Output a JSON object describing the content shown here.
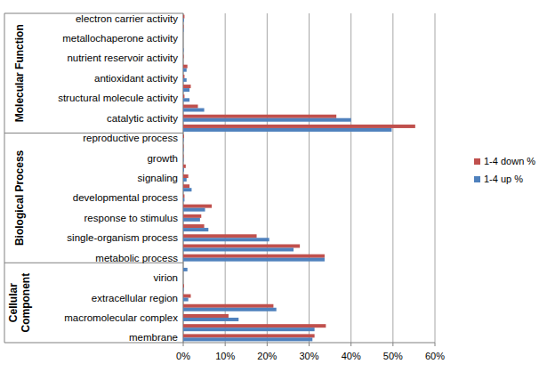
{
  "chart_data": {
    "type": "bar",
    "orientation": "horizontal",
    "grid": true,
    "legend": "right",
    "categories": [
      "electron carrier activity",
      null,
      "metallochaperone activity",
      null,
      "nutrient reservoir activity",
      null,
      "antioxidant activity",
      null,
      "structural molecule activity",
      null,
      "catalytic activity",
      null,
      "reproductive process",
      null,
      "growth",
      null,
      "signaling",
      null,
      "developmental process",
      null,
      "response to stimulus",
      null,
      "single-organism process",
      null,
      "metabolic process",
      null,
      "virion",
      null,
      "extracellular region",
      null,
      "macromolecular complex",
      null,
      "membrane"
    ],
    "groups": [
      {
        "name": "Molecular Function",
        "count": 12
      },
      {
        "name": "Biological Process",
        "count": 13
      },
      {
        "name": "Cellular Component",
        "count": 8
      }
    ],
    "series": [
      {
        "name": "1-4 down %",
        "color": "#c0504d",
        "values": [
          0.3,
          0.1,
          0,
          0,
          0.1,
          1.0,
          0.3,
          1.8,
          0.3,
          3.5,
          36.5,
          55.3,
          0.2,
          0.1,
          0.1,
          0.6,
          1.2,
          1.5,
          0.3,
          6.8,
          4.3,
          5.0,
          17.5,
          27.8,
          33.7,
          0,
          0,
          0.2,
          1.8,
          21.5,
          10.8,
          34.0,
          31.3
        ]
      },
      {
        "name": "1-4 up %",
        "color": "#4f81bd",
        "values": [
          0.2,
          0.1,
          0,
          0.1,
          0,
          0.8,
          0.8,
          1.5,
          1.5,
          5.0,
          40.0,
          49.7,
          0.1,
          0.1,
          0.1,
          0.2,
          0.8,
          2.0,
          0.3,
          5.2,
          4.0,
          6.0,
          20.5,
          26.3,
          33.7,
          1.0,
          0,
          0.1,
          1.2,
          22.2,
          13.2,
          31.3,
          30.8
        ]
      }
    ],
    "xlim": [
      0,
      60
    ],
    "xticks": [
      {
        "value": 0,
        "label": "0%"
      },
      {
        "value": 10,
        "label": "10%"
      },
      {
        "value": 20,
        "label": "20%"
      },
      {
        "value": 30,
        "label": "30%"
      },
      {
        "value": 40,
        "label": "40%"
      },
      {
        "value": 50,
        "label": "50%"
      },
      {
        "value": 60,
        "label": "60%"
      }
    ]
  }
}
